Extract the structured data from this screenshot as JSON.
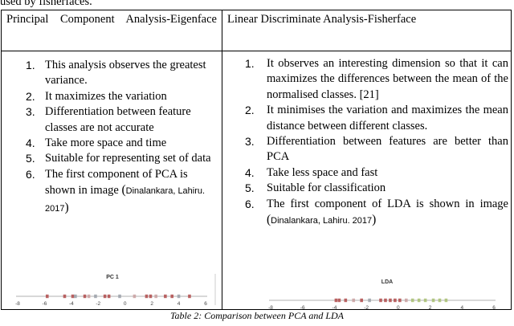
{
  "intro_text": "used by fisherfaces.",
  "table": {
    "headers": {
      "pca": "Principal Component Analysis-Eigenface",
      "lda": "Linear Discriminate Analysis-Fisherface"
    },
    "pca_items": [
      {
        "num": "1.",
        "text": "This analysis observes the greatest variance."
      },
      {
        "num": "2.",
        "text": "It maximizes the variation"
      },
      {
        "num": "3.",
        "text": "Differentiation between feature classes are not accurate"
      },
      {
        "num": "4.",
        "text": "Take more space and time"
      },
      {
        "num": "5.",
        "text": "Suitable for representing set of data"
      },
      {
        "num": "6.",
        "text": "The first component of PCA is shown in image"
      }
    ],
    "lda_items": [
      {
        "num": "1.",
        "text": "It observes an interesting dimension so that it can maximizes the differences between the mean of the normalised classes. [21]"
      },
      {
        "num": "2.",
        "text": "It minimises the variation and maximizes the mean distance between different classes."
      },
      {
        "num": "3.",
        "text": "Differentiation between features are better than PCA"
      },
      {
        "num": "4.",
        "text": "Take less space and fast"
      },
      {
        "num": "5.",
        "text": "Suitable for classification"
      },
      {
        "num": "6.",
        "text": "The first component of LDA is shown in image"
      }
    ],
    "citation_open": "(",
    "citation": "Dinalankara, Lahiru. 2017",
    "citation_close": ")"
  },
  "pca_plot": {
    "label": "PC 1",
    "ticks": [
      "-8",
      "-6",
      "-4",
      "-2",
      "0",
      "2",
      "4",
      "6"
    ],
    "range": [
      -8,
      6
    ],
    "points": [
      {
        "x": -5.8,
        "color": "#b04a4a"
      },
      {
        "x": -4.5,
        "color": "#b04a4a"
      },
      {
        "x": -3.9,
        "color": "#b04a4a"
      },
      {
        "x": -3.7,
        "color": "#9aa0a8"
      },
      {
        "x": -3.0,
        "color": "#b04a4a"
      },
      {
        "x": -2.7,
        "color": "#c9a0a0"
      },
      {
        "x": -2.2,
        "color": "#9aa0a8"
      },
      {
        "x": -1.5,
        "color": "#b04a4a"
      },
      {
        "x": -1.2,
        "color": "#b04a4a"
      },
      {
        "x": -0.4,
        "color": "#9aa0a8"
      },
      {
        "x": 0.7,
        "color": "#c9a0a0"
      },
      {
        "x": 1.6,
        "color": "#b04a4a"
      },
      {
        "x": 1.9,
        "color": "#b04a4a"
      },
      {
        "x": 2.3,
        "color": "#c9a0a0"
      },
      {
        "x": 3.0,
        "color": "#b04a4a"
      },
      {
        "x": 3.5,
        "color": "#b04a4a"
      },
      {
        "x": 4.0,
        "color": "#9aa0a8"
      },
      {
        "x": 4.8,
        "color": "#b04a4a"
      }
    ]
  },
  "lda_plot": {
    "label": "LDA",
    "ticks": [
      "-8",
      "-6",
      "-4",
      "-2",
      "0",
      "2",
      "4",
      "6"
    ],
    "range": [
      -8,
      6
    ],
    "points": [
      {
        "x": -3.9,
        "color": "#b04a4a"
      },
      {
        "x": -3.7,
        "color": "#b04a4a"
      },
      {
        "x": -3.3,
        "color": "#b04a4a"
      },
      {
        "x": -2.8,
        "color": "#c9a0a0"
      },
      {
        "x": -2.3,
        "color": "#b04a4a"
      },
      {
        "x": -1.8,
        "color": "#9aa0a8"
      },
      {
        "x": -1.1,
        "color": "#b04a4a"
      },
      {
        "x": -0.8,
        "color": "#b04a4a"
      },
      {
        "x": -0.5,
        "color": "#b04a4a"
      },
      {
        "x": -0.2,
        "color": "#b04a4a"
      },
      {
        "x": 0.1,
        "color": "#b04a4a"
      },
      {
        "x": 0.5,
        "color": "#c9a0a0"
      },
      {
        "x": 0.9,
        "color": "#a8c070"
      },
      {
        "x": 1.3,
        "color": "#a8c070"
      },
      {
        "x": 1.7,
        "color": "#a8c070"
      },
      {
        "x": 2.2,
        "color": "#a8c070"
      },
      {
        "x": 2.6,
        "color": "#a8c070"
      },
      {
        "x": 3.0,
        "color": "#a8c070"
      }
    ]
  },
  "caption": "Table 2: Comparison between PCA and LDA"
}
